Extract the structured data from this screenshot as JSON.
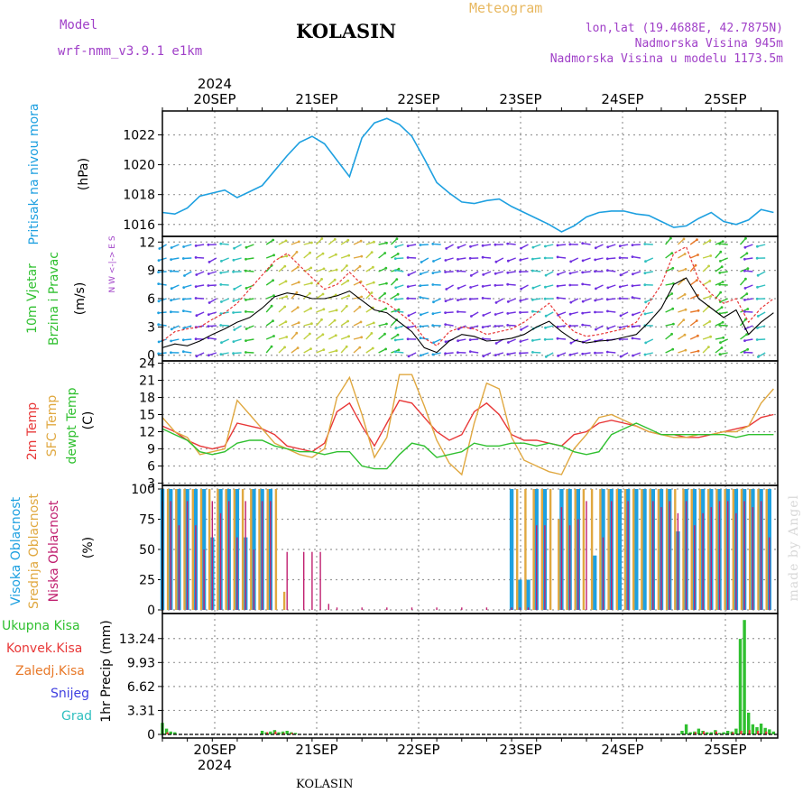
{
  "header": {
    "model_label": "Model",
    "model_name": "wrf-nmm_v3.9.1 e1km",
    "title": "KOLASIN",
    "meteogram_label": "Meteogram",
    "coords": "lon,lat (19.4688E, 42.7875N)",
    "elevation": "Nadmorska Visina 945m",
    "model_elevation": "Nadmorska Visina u modelu 1173.5m",
    "credit": "made by Angel",
    "footer": "KOLASIN"
  },
  "colors": {
    "pressure": "#1ea0e0",
    "t2m": "#e83838",
    "sfc": "#e0a840",
    "dewpt": "#30c030",
    "high_cloud": "#1ea0e0",
    "mid_cloud": "#e0a840",
    "low_cloud": "#c02070",
    "total_precip": "#30c030",
    "conv_precip": "#e83838",
    "frz_precip": "#e87828",
    "snow": "#4040e0",
    "hail": "#30c0c0",
    "wind_line": "#000000",
    "gust": "#e83838",
    "violet_text": "#a040c8"
  },
  "time_axis": {
    "year": "2024",
    "labels": [
      "20SEP",
      "21SEP",
      "22SEP",
      "23SEP",
      "24SEP",
      "25SEP"
    ]
  },
  "chart_data": [
    {
      "type": "line",
      "name": "pressure",
      "ylabel": "Pritisak na nivou mora",
      "unit": "(hPa)",
      "yticks": [
        1016,
        1018,
        1020,
        1022
      ],
      "ylim": [
        1015.2,
        1023.6
      ],
      "x_hours": [
        0,
        3,
        6,
        9,
        12,
        15,
        18,
        21,
        24,
        27,
        30,
        33,
        36,
        39,
        42,
        45,
        48,
        51,
        54,
        57,
        60,
        63,
        66,
        69,
        72,
        75,
        78,
        81,
        84,
        87,
        90,
        93,
        96,
        99,
        102,
        105,
        108,
        111,
        114,
        117,
        120,
        123,
        126,
        129,
        132,
        135,
        138,
        141,
        144,
        147
      ],
      "values": [
        1016.8,
        1016.7,
        1017.1,
        1017.9,
        1018.1,
        1018.3,
        1017.8,
        1018.2,
        1018.6,
        1019.6,
        1020.6,
        1021.5,
        1021.9,
        1021.4,
        1020.3,
        1019.2,
        1021.8,
        1022.8,
        1023.1,
        1022.7,
        1021.9,
        1020.4,
        1018.8,
        1018.1,
        1017.5,
        1017.4,
        1017.6,
        1017.7,
        1017.2,
        1016.8,
        1016.4,
        1016.0,
        1015.5,
        1015.9,
        1016.5,
        1016.8,
        1016.9,
        1016.9,
        1016.7,
        1016.6,
        1016.2,
        1015.8,
        1015.9,
        1016.4,
        1016.8,
        1016.2,
        1016.0,
        1016.3,
        1017.0,
        1016.8
      ]
    },
    {
      "type": "line",
      "name": "wind",
      "ylabel": "10m Vjetar Brzina i Pravac",
      "unit": "(m/s)",
      "compass": "N W <-|-> E S",
      "yticks": [
        0,
        3,
        6,
        9,
        12
      ],
      "ylim": [
        -0.6,
        12.6
      ],
      "x_hours": [
        0,
        3,
        6,
        9,
        12,
        15,
        18,
        21,
        24,
        27,
        30,
        33,
        36,
        39,
        42,
        45,
        48,
        51,
        54,
        57,
        60,
        63,
        66,
        69,
        72,
        75,
        78,
        81,
        84,
        87,
        90,
        93,
        96,
        99,
        102,
        105,
        108,
        111,
        114,
        117,
        120,
        123,
        126,
        129,
        132,
        135,
        138,
        141,
        144,
        147
      ],
      "speed": [
        0.8,
        1.2,
        1.0,
        1.5,
        2.2,
        2.8,
        3.5,
        4.0,
        5.0,
        6.2,
        6.6,
        6.4,
        6.0,
        6.0,
        6.3,
        6.8,
        5.8,
        4.8,
        4.5,
        3.5,
        2.5,
        0.8,
        0.3,
        1.5,
        2.2,
        2.0,
        1.5,
        1.6,
        1.8,
        2.2,
        3.0,
        3.6,
        2.5,
        1.6,
        1.3,
        1.5,
        1.6,
        1.9,
        2.2,
        3.5,
        5.0,
        7.5,
        8.2,
        6.0,
        5.0,
        4.0,
        4.8,
        2.2,
        3.5,
        4.5
      ],
      "gust": [
        1.5,
        2.5,
        2.8,
        3.0,
        3.8,
        4.5,
        5.5,
        7.0,
        8.5,
        10.0,
        10.8,
        9.5,
        8.2,
        7.0,
        7.5,
        8.8,
        7.5,
        6.0,
        5.5,
        4.5,
        3.5,
        1.8,
        1.0,
        2.5,
        3.0,
        2.8,
        2.2,
        2.5,
        2.8,
        3.5,
        4.5,
        5.5,
        3.8,
        2.5,
        2.0,
        2.2,
        2.5,
        2.8,
        3.5,
        5.5,
        7.5,
        10.8,
        11.5,
        8.0,
        6.5,
        5.5,
        6.0,
        3.5,
        5.0,
        6.0
      ]
    },
    {
      "type": "line",
      "name": "temperature",
      "ylabel": "2m Temp SFC Temp dewpt Temp",
      "unit": "(C)",
      "yticks": [
        3,
        6,
        9,
        12,
        15,
        18,
        21,
        24
      ],
      "ylim": [
        2.6,
        24.4
      ],
      "series": [
        {
          "name": "2m Temp",
          "color_key": "t2m",
          "x_hours": [
            0,
            3,
            6,
            9,
            12,
            15,
            18,
            21,
            24,
            27,
            30,
            33,
            36,
            39,
            42,
            45,
            48,
            51,
            54,
            57,
            60,
            63,
            66,
            69,
            72,
            75,
            78,
            81,
            84,
            87,
            90,
            93,
            96,
            99,
            102,
            105,
            108,
            111,
            114,
            117,
            120,
            123,
            126,
            129,
            132,
            135,
            138,
            141,
            144,
            147
          ],
          "values": [
            13.0,
            12.0,
            10.5,
            9.5,
            9.0,
            9.5,
            13.5,
            13.0,
            12.5,
            11.5,
            9.5,
            9.0,
            8.5,
            10.0,
            15.5,
            17.0,
            13.0,
            9.5,
            13.5,
            17.5,
            17.0,
            14.5,
            12.0,
            10.5,
            11.5,
            15.5,
            17.0,
            15.0,
            11.5,
            10.5,
            10.5,
            10.0,
            9.5,
            11.5,
            12.0,
            13.5,
            14.0,
            13.5,
            13.0,
            12.0,
            11.5,
            11.5,
            11.0,
            11.0,
            11.5,
            12.0,
            12.5,
            13.0,
            14.5,
            15.0
          ]
        },
        {
          "name": "SFC Temp",
          "color_key": "sfc",
          "x_hours": [
            0,
            3,
            6,
            9,
            12,
            15,
            18,
            21,
            24,
            27,
            30,
            33,
            36,
            39,
            42,
            45,
            48,
            51,
            54,
            57,
            60,
            63,
            66,
            69,
            72,
            75,
            78,
            81,
            84,
            87,
            90,
            93,
            96,
            99,
            102,
            105,
            108,
            111,
            114,
            117,
            120,
            123,
            126,
            129,
            132,
            135,
            138,
            141,
            144,
            147
          ],
          "values": [
            14.5,
            12.0,
            11.0,
            8.0,
            8.5,
            9.0,
            17.5,
            15.0,
            12.5,
            10.0,
            9.0,
            8.0,
            7.5,
            9.0,
            18.0,
            21.5,
            15.0,
            7.5,
            11.0,
            22.0,
            22.0,
            16.5,
            10.5,
            6.5,
            4.5,
            13.5,
            20.5,
            19.5,
            11.0,
            7.0,
            6.0,
            5.0,
            4.5,
            9.0,
            11.5,
            14.5,
            15.0,
            14.0,
            13.0,
            12.0,
            11.5,
            11.0,
            11.0,
            11.5,
            11.5,
            12.0,
            12.0,
            13.0,
            17.0,
            19.5
          ]
        },
        {
          "name": "dewpt Temp",
          "color_key": "dewpt",
          "x_hours": [
            0,
            3,
            6,
            9,
            12,
            15,
            18,
            21,
            24,
            27,
            30,
            33,
            36,
            39,
            42,
            45,
            48,
            51,
            54,
            57,
            60,
            63,
            66,
            69,
            72,
            75,
            78,
            81,
            84,
            87,
            90,
            93,
            96,
            99,
            102,
            105,
            108,
            111,
            114,
            117,
            120,
            123,
            126,
            129,
            132,
            135,
            138,
            141,
            144,
            147
          ],
          "values": [
            12.5,
            11.5,
            10.5,
            8.5,
            8.0,
            8.5,
            10.0,
            10.5,
            10.5,
            9.5,
            9.0,
            8.5,
            8.5,
            8.0,
            8.5,
            8.5,
            6.0,
            5.5,
            5.5,
            8.0,
            10.0,
            9.5,
            7.5,
            8.0,
            8.5,
            10.0,
            9.5,
            9.5,
            10.0,
            10.0,
            9.5,
            10.0,
            9.5,
            8.5,
            8.0,
            8.5,
            11.5,
            12.5,
            13.5,
            12.5,
            11.5,
            11.5,
            11.5,
            11.5,
            11.5,
            11.5,
            11.0,
            11.5,
            11.5,
            11.5
          ]
        }
      ]
    },
    {
      "type": "bar",
      "name": "cloud_cover",
      "ylabel": "Visoka Oblacnost Srednja Oblacnost Niska Oblacnost",
      "unit": "(%)",
      "yticks": [
        0,
        25,
        50,
        75,
        100
      ],
      "ylim": [
        -3,
        103
      ],
      "series": [
        {
          "name": "Visoka Oblacnost",
          "color_key": "high_cloud",
          "x_hours": [
            0,
            2,
            4,
            6,
            8,
            10,
            12,
            14,
            16,
            18,
            20,
            22,
            24,
            26,
            28,
            30,
            32,
            34,
            36,
            84,
            86,
            88,
            90,
            92,
            94,
            96,
            98,
            100,
            102,
            104,
            106,
            108,
            110,
            112,
            114,
            116,
            118,
            120,
            122,
            124,
            126,
            128,
            130,
            132,
            134,
            136,
            138,
            140,
            142,
            144,
            146
          ],
          "values": [
            100,
            100,
            100,
            100,
            100,
            100,
            60,
            100,
            100,
            100,
            60,
            100,
            100,
            100,
            0,
            0,
            0,
            0,
            0,
            100,
            25,
            25,
            100,
            100,
            0,
            100,
            100,
            100,
            0,
            45,
            100,
            100,
            100,
            100,
            100,
            100,
            100,
            100,
            100,
            65,
            100,
            100,
            100,
            100,
            100,
            100,
            100,
            100,
            100,
            100,
            100
          ]
        },
        {
          "name": "Srednja Oblacnost",
          "color_key": "mid_cloud",
          "x_hours": [
            1,
            3,
            5,
            7,
            9,
            11,
            13,
            15,
            17,
            19,
            21,
            23,
            25,
            27,
            29,
            31,
            85,
            87,
            89,
            91,
            93,
            95,
            97,
            99,
            101,
            103,
            105,
            107,
            109,
            111,
            113,
            115,
            117,
            119,
            121,
            123,
            125,
            127,
            129,
            131,
            133,
            135,
            137,
            139,
            141,
            143,
            145
          ],
          "values": [
            100,
            100,
            100,
            100,
            100,
            100,
            100,
            100,
            100,
            100,
            100,
            100,
            100,
            100,
            15,
            0,
            100,
            100,
            100,
            100,
            100,
            75,
            100,
            100,
            100,
            100,
            100,
            100,
            100,
            100,
            100,
            100,
            100,
            100,
            100,
            100,
            100,
            100,
            100,
            100,
            100,
            100,
            100,
            100,
            100,
            100,
            100
          ]
        },
        {
          "name": "Niska Oblacnost",
          "color_key": "low_cloud",
          "x_hours": [
            0,
            2,
            4,
            6,
            8,
            10,
            12,
            14,
            16,
            18,
            20,
            22,
            24,
            26,
            28,
            30,
            32,
            34,
            36,
            38,
            40,
            42,
            48,
            54,
            60,
            66,
            72,
            78,
            84,
            86,
            88,
            90,
            92,
            94,
            96,
            98,
            100,
            102,
            104,
            106,
            108,
            110,
            112,
            114,
            116,
            118,
            120,
            122,
            124,
            126,
            128,
            130,
            132,
            134,
            136,
            138,
            140,
            142,
            144,
            146
          ],
          "values": [
            90,
            90,
            70,
            90,
            70,
            50,
            90,
            80,
            90,
            60,
            90,
            50,
            90,
            90,
            0,
            48,
            0,
            48,
            48,
            48,
            5,
            2,
            2,
            2,
            2,
            2,
            2,
            2,
            2,
            2,
            2,
            70,
            70,
            0,
            85,
            70,
            75,
            90,
            0,
            60,
            90,
            0,
            90,
            0,
            0,
            90,
            85,
            90,
            80,
            90,
            70,
            80,
            85,
            90,
            90,
            80,
            90,
            85,
            90,
            60
          ]
        }
      ]
    },
    {
      "type": "bar",
      "name": "precipitation",
      "ylabel": "1hr Precip (mm)",
      "legend": [
        "Ukupna Kisa",
        "Konvek.Kisa",
        "Zaledj.Kisa",
        "Snijeg",
        "Grad"
      ],
      "yticks": [
        0,
        3.31,
        6.62,
        9.93,
        13.24
      ],
      "ylim": [
        -0.5,
        16.7
      ],
      "series": [
        {
          "name": "Ukupna Kisa",
          "color_key": "total_precip",
          "x_hours": [
            0,
            1,
            2,
            3,
            24,
            25,
            26,
            27,
            28,
            29,
            30,
            31,
            32,
            125,
            126,
            127,
            128,
            129,
            130,
            131,
            132,
            133,
            134,
            135,
            136,
            137,
            138,
            139,
            140,
            141,
            142,
            143,
            144,
            145,
            146,
            147
          ],
          "values": [
            1.6,
            0.8,
            0.4,
            0.3,
            0.5,
            0.3,
            0.4,
            0.6,
            0.3,
            0.4,
            0.5,
            0.3,
            0.2,
            0.5,
            1.4,
            0.3,
            0.4,
            0.8,
            0.5,
            0.3,
            0.3,
            0.6,
            0.2,
            0.3,
            0.5,
            0.4,
            0.8,
            13.2,
            15.8,
            3.0,
            1.4,
            1.0,
            1.5,
            0.9,
            0.7,
            0.4
          ]
        },
        {
          "name": "Konvek.Kisa",
          "color_key": "conv_precip",
          "x_hours": [
            1,
            25,
            27,
            29,
            31,
            128,
            130,
            133,
            137,
            139,
            141,
            143,
            145
          ],
          "values": [
            0.3,
            0.3,
            0.4,
            0.2,
            0.2,
            0.3,
            0.4,
            0.4,
            0.3,
            0.5,
            0.6,
            0.5,
            0.4
          ]
        }
      ]
    }
  ]
}
